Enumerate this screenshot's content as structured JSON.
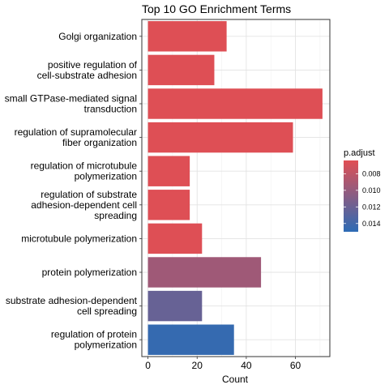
{
  "chart_data": {
    "type": "bar",
    "orientation": "horizontal",
    "title": "Top 10 GO Enrichment Terms",
    "xlabel": "Count",
    "ylabel": "",
    "xlim": [
      -2.5,
      74
    ],
    "x_ticks": [
      0,
      20,
      40,
      60
    ],
    "grid": true,
    "legend_position": "right",
    "colors": {
      "low": "#e04f54",
      "high": "#2d6bb5"
    },
    "categories": [
      [
        "Golgi organization"
      ],
      [
        "positive regulation of",
        "cell-substrate adhesion"
      ],
      [
        "small GTPase-mediated signal",
        "transduction"
      ],
      [
        "regulation of supramolecular",
        "fiber organization"
      ],
      [
        "regulation of microtubule",
        "polymerization"
      ],
      [
        "regulation of substrate",
        "adhesion-dependent cell",
        "spreading"
      ],
      [
        "microtubule polymerization"
      ],
      [
        "protein polymerization"
      ],
      [
        "substrate adhesion-dependent",
        "cell spreading"
      ],
      [
        "regulation of protein",
        "polymerization"
      ]
    ],
    "values": [
      32,
      27,
      71,
      59,
      17,
      17,
      22,
      46,
      22,
      35
    ],
    "p_adjust": [
      0.0065,
      0.0065,
      0.0065,
      0.0065,
      0.0065,
      0.0065,
      0.0065,
      0.0095,
      0.0122,
      0.0146
    ],
    "legend": {
      "title": "p.adjust",
      "ticks": [
        "0.008",
        "0.010",
        "0.012",
        "0.014"
      ],
      "tick_values": [
        0.008,
        0.01,
        0.012,
        0.014
      ],
      "range": [
        0.0064,
        0.015
      ]
    }
  }
}
